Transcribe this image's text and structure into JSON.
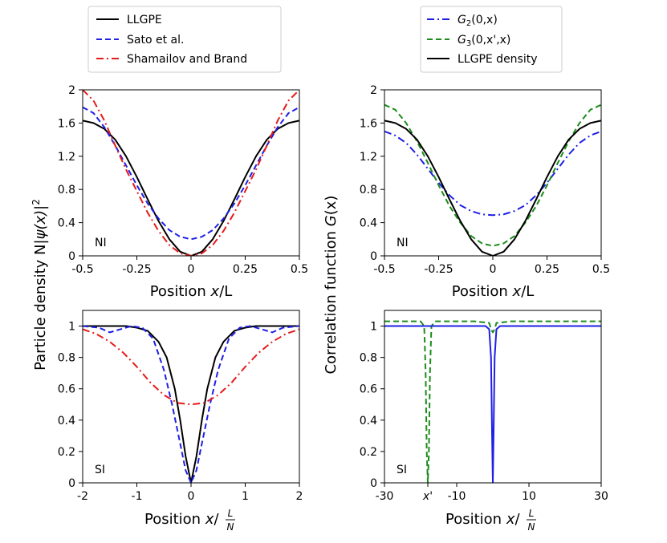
{
  "chart_data": [
    {
      "id": "top-left",
      "type": "line",
      "xlabel": "Position x/L",
      "xlim": [
        -0.5,
        0.5
      ],
      "ylim": [
        0,
        2
      ],
      "xticks": [
        -0.5,
        -0.25,
        0,
        0.25,
        0.5
      ],
      "xtick_labels": [
        "-0.5",
        "-0.25",
        "0",
        "0.25",
        "0.5"
      ],
      "yticks": [
        0,
        0.4,
        0.8,
        1.2,
        1.6,
        2
      ],
      "ytick_labels": [
        "0",
        "0.4",
        "0.8",
        "1.2",
        "1.6",
        "2"
      ],
      "panel_label": "NI",
      "series": [
        {
          "name": "LLGPE",
          "style": "solid",
          "color": "#000000",
          "x": [
            -0.5,
            -0.45,
            -0.4,
            -0.35,
            -0.3,
            -0.25,
            -0.2,
            -0.15,
            -0.1,
            -0.05,
            0,
            0.05,
            0.1,
            0.15,
            0.2,
            0.25,
            0.3,
            0.35,
            0.4,
            0.45,
            0.5
          ],
          "y": [
            1.63,
            1.6,
            1.53,
            1.4,
            1.2,
            0.95,
            0.68,
            0.42,
            0.2,
            0.05,
            0,
            0.05,
            0.2,
            0.42,
            0.68,
            0.95,
            1.2,
            1.4,
            1.53,
            1.6,
            1.63
          ]
        },
        {
          "name": "Sato et al.",
          "style": "dashed",
          "color": "#1f1fe6",
          "x": [
            -0.5,
            -0.45,
            -0.4,
            -0.35,
            -0.3,
            -0.25,
            -0.2,
            -0.15,
            -0.1,
            -0.05,
            0,
            0.05,
            0.1,
            0.15,
            0.2,
            0.25,
            0.3,
            0.35,
            0.4,
            0.45,
            0.5
          ],
          "y": [
            1.79,
            1.72,
            1.55,
            1.33,
            1.09,
            0.85,
            0.63,
            0.45,
            0.31,
            0.23,
            0.2,
            0.23,
            0.31,
            0.45,
            0.63,
            0.85,
            1.09,
            1.33,
            1.55,
            1.72,
            1.79
          ]
        },
        {
          "name": "Shamailov and Brand",
          "style": "dashdot",
          "color": "#e61a1a",
          "x": [
            -0.5,
            -0.45,
            -0.4,
            -0.35,
            -0.3,
            -0.25,
            -0.2,
            -0.15,
            -0.1,
            -0.05,
            0,
            0.05,
            0.1,
            0.15,
            0.2,
            0.25,
            0.3,
            0.35,
            0.4,
            0.45,
            0.5
          ],
          "y": [
            2.0,
            1.87,
            1.63,
            1.33,
            1.04,
            0.78,
            0.52,
            0.3,
            0.13,
            0.03,
            0,
            0.03,
            0.13,
            0.3,
            0.52,
            0.78,
            1.04,
            1.33,
            1.63,
            1.87,
            2.0
          ]
        }
      ]
    },
    {
      "id": "top-right",
      "type": "line",
      "xlabel": "Position x/L",
      "xlim": [
        -0.5,
        0.5
      ],
      "ylim": [
        0,
        2
      ],
      "xticks": [
        -0.5,
        -0.25,
        0,
        0.25,
        0.5
      ],
      "xtick_labels": [
        "-0.5",
        "-0.25",
        "0",
        "0.25",
        "0.5"
      ],
      "yticks": [
        0,
        0.4,
        0.8,
        1.2,
        1.6,
        2
      ],
      "ytick_labels": [
        "0",
        "0.4",
        "0.8",
        "1.2",
        "1.6",
        "2"
      ],
      "panel_label": "NI",
      "series": [
        {
          "name": "G2(0,x)",
          "style": "dashdot",
          "color": "#1f1fe6",
          "x": [
            -0.5,
            -0.45,
            -0.4,
            -0.35,
            -0.3,
            -0.25,
            -0.2,
            -0.15,
            -0.1,
            -0.05,
            0,
            0.05,
            0.1,
            0.15,
            0.2,
            0.25,
            0.3,
            0.35,
            0.4,
            0.45,
            0.5
          ],
          "y": [
            1.5,
            1.45,
            1.36,
            1.22,
            1.05,
            0.88,
            0.73,
            0.61,
            0.54,
            0.5,
            0.49,
            0.5,
            0.54,
            0.61,
            0.73,
            0.88,
            1.05,
            1.22,
            1.36,
            1.45,
            1.5
          ]
        },
        {
          "name": "G3(0,x',x)",
          "style": "dashed",
          "color": "#1a8c1a",
          "x": [
            -0.5,
            -0.45,
            -0.4,
            -0.35,
            -0.3,
            -0.25,
            -0.2,
            -0.15,
            -0.1,
            -0.05,
            0,
            0.05,
            0.1,
            0.15,
            0.2,
            0.25,
            0.3,
            0.35,
            0.4,
            0.45,
            0.5
          ],
          "y": [
            1.82,
            1.76,
            1.6,
            1.38,
            1.12,
            0.85,
            0.6,
            0.4,
            0.24,
            0.15,
            0.12,
            0.15,
            0.24,
            0.4,
            0.6,
            0.85,
            1.12,
            1.38,
            1.6,
            1.76,
            1.82
          ]
        },
        {
          "name": "LLGPE density",
          "style": "solid",
          "color": "#000000",
          "x": [
            -0.5,
            -0.45,
            -0.4,
            -0.35,
            -0.3,
            -0.25,
            -0.2,
            -0.15,
            -0.1,
            -0.05,
            0,
            0.05,
            0.1,
            0.15,
            0.2,
            0.25,
            0.3,
            0.35,
            0.4,
            0.45,
            0.5
          ],
          "y": [
            1.63,
            1.6,
            1.53,
            1.4,
            1.2,
            0.95,
            0.68,
            0.42,
            0.2,
            0.05,
            0,
            0.05,
            0.2,
            0.42,
            0.68,
            0.95,
            1.2,
            1.4,
            1.53,
            1.6,
            1.63
          ]
        }
      ]
    },
    {
      "id": "bottom-left",
      "type": "line",
      "xlabel": "Position x/(L/N)",
      "xlim": [
        -2,
        2
      ],
      "ylim": [
        0,
        1.1
      ],
      "xticks": [
        -2,
        -1,
        0,
        1,
        2
      ],
      "xtick_labels": [
        "-2",
        "-1",
        "0",
        "1",
        "2"
      ],
      "yticks": [
        0,
        0.2,
        0.4,
        0.6,
        0.8,
        1
      ],
      "ytick_labels": [
        "0",
        "0.2",
        "0.4",
        "0.6",
        "0.8",
        "1"
      ],
      "panel_label": "SI",
      "series": [
        {
          "name": "LLGPE",
          "style": "solid",
          "color": "#000000",
          "x": [
            -2,
            -1.5,
            -1.2,
            -1,
            -0.8,
            -0.6,
            -0.45,
            -0.3,
            -0.2,
            -0.1,
            0,
            0.1,
            0.2,
            0.3,
            0.45,
            0.6,
            0.8,
            1,
            1.2,
            1.5,
            2
          ],
          "y": [
            1.0,
            1.0,
            1.0,
            0.99,
            0.97,
            0.9,
            0.8,
            0.6,
            0.4,
            0.17,
            0,
            0.17,
            0.4,
            0.6,
            0.8,
            0.9,
            0.97,
            0.99,
            1.0,
            1.0,
            1.0
          ]
        },
        {
          "name": "Sato et al.",
          "style": "dashed",
          "color": "#1f1fe6",
          "x": [
            -2,
            -1.7,
            -1.5,
            -1.3,
            -1.1,
            -0.9,
            -0.7,
            -0.5,
            -0.35,
            -0.2,
            -0.1,
            0,
            0.1,
            0.2,
            0.35,
            0.5,
            0.7,
            0.9,
            1.1,
            1.3,
            1.5,
            1.7,
            2
          ],
          "y": [
            1.0,
            0.99,
            0.96,
            0.98,
            1.0,
            0.99,
            0.92,
            0.72,
            0.5,
            0.25,
            0.08,
            0,
            0.08,
            0.25,
            0.5,
            0.72,
            0.92,
            0.99,
            1.0,
            0.98,
            0.96,
            0.99,
            1.0
          ]
        },
        {
          "name": "Shamailov and Brand",
          "style": "dashdot",
          "color": "#e61a1a",
          "x": [
            -2,
            -1.75,
            -1.5,
            -1.25,
            -1,
            -0.75,
            -0.5,
            -0.25,
            0,
            0.25,
            0.5,
            0.75,
            1,
            1.25,
            1.5,
            1.75,
            2
          ],
          "y": [
            0.98,
            0.95,
            0.9,
            0.83,
            0.74,
            0.64,
            0.56,
            0.51,
            0.5,
            0.51,
            0.56,
            0.64,
            0.74,
            0.83,
            0.9,
            0.95,
            0.98
          ]
        }
      ]
    },
    {
      "id": "bottom-right",
      "type": "line",
      "xlabel": "Position x/(L/N)",
      "xlim": [
        -30,
        30
      ],
      "ylim": [
        0,
        1.1
      ],
      "xticks": [
        -30,
        -18,
        -10,
        10,
        30
      ],
      "xtick_labels": [
        "-30",
        "x'",
        "-10",
        "10",
        "30"
      ],
      "yticks": [
        0,
        0.2,
        0.4,
        0.6,
        0.8,
        1
      ],
      "ytick_labels": [
        "0",
        "0.2",
        "0.4",
        "0.6",
        "0.8",
        "1"
      ],
      "panel_label": "SI",
      "series": [
        {
          "name": "G3(0,x',x)",
          "style": "dashed",
          "color": "#1a8c1a",
          "x": [
            -30,
            -26,
            -22,
            -20,
            -19,
            -18.6,
            -18.3,
            -18,
            -17.7,
            -17.4,
            -17,
            -16,
            -14,
            -10,
            -5,
            -1,
            -0.5,
            0,
            0.5,
            1,
            5,
            10,
            20,
            30
          ],
          "y": [
            1.03,
            1.03,
            1.03,
            1.03,
            1.0,
            0.7,
            0.2,
            0,
            0.2,
            0.7,
            1.0,
            1.03,
            1.03,
            1.03,
            1.03,
            1.02,
            0.98,
            0.96,
            0.98,
            1.02,
            1.03,
            1.03,
            1.03,
            1.03
          ]
        },
        {
          "name": "G2(0,x)",
          "style": "solid",
          "color": "#1f1fe6",
          "x": [
            -30,
            -20,
            -10,
            -2,
            -1,
            -0.5,
            -0.2,
            0,
            0.2,
            0.5,
            1,
            2,
            10,
            20,
            30
          ],
          "y": [
            1.0,
            1.0,
            1.0,
            1.0,
            0.98,
            0.8,
            0.3,
            0,
            0.3,
            0.8,
            0.98,
            1.0,
            1.0,
            1.0,
            1.0
          ]
        }
      ]
    }
  ],
  "axis_text": {
    "left_ylabel_main": "Particle density N",
    "left_ylabel_psi": "ψ(x)",
    "left_ylabel_sup": "2",
    "right_ylabel_main": "Correlation function ",
    "right_ylabel_g": "G",
    "right_ylabel_arg": "(x)",
    "xlabel_prefix": "Position ",
    "xlabel_x": "x",
    "xlabel_L": "/L",
    "xlabel_slash": "/",
    "frac_num": "L",
    "frac_den": "N"
  },
  "legend_left": [
    {
      "label": "LLGPE",
      "style": "solid",
      "color": "#000000"
    },
    {
      "label": "Sato et al.",
      "style": "dashed",
      "color": "#1f1fe6"
    },
    {
      "label": "Shamailov and Brand",
      "style": "dashdot",
      "color": "#e61a1a"
    }
  ],
  "legend_right": [
    {
      "label_main": "G",
      "label_sub": "2",
      "label_arg": "(0,x)",
      "style": "dashdot",
      "color": "#1f1fe6"
    },
    {
      "label_main": "G",
      "label_sub": "3",
      "label_arg": "(0,x',x)",
      "style": "dashed",
      "color": "#1a8c1a"
    },
    {
      "label_main": "LLGPE density",
      "label_sub": "",
      "label_arg": "",
      "style": "solid",
      "color": "#000000"
    }
  ]
}
